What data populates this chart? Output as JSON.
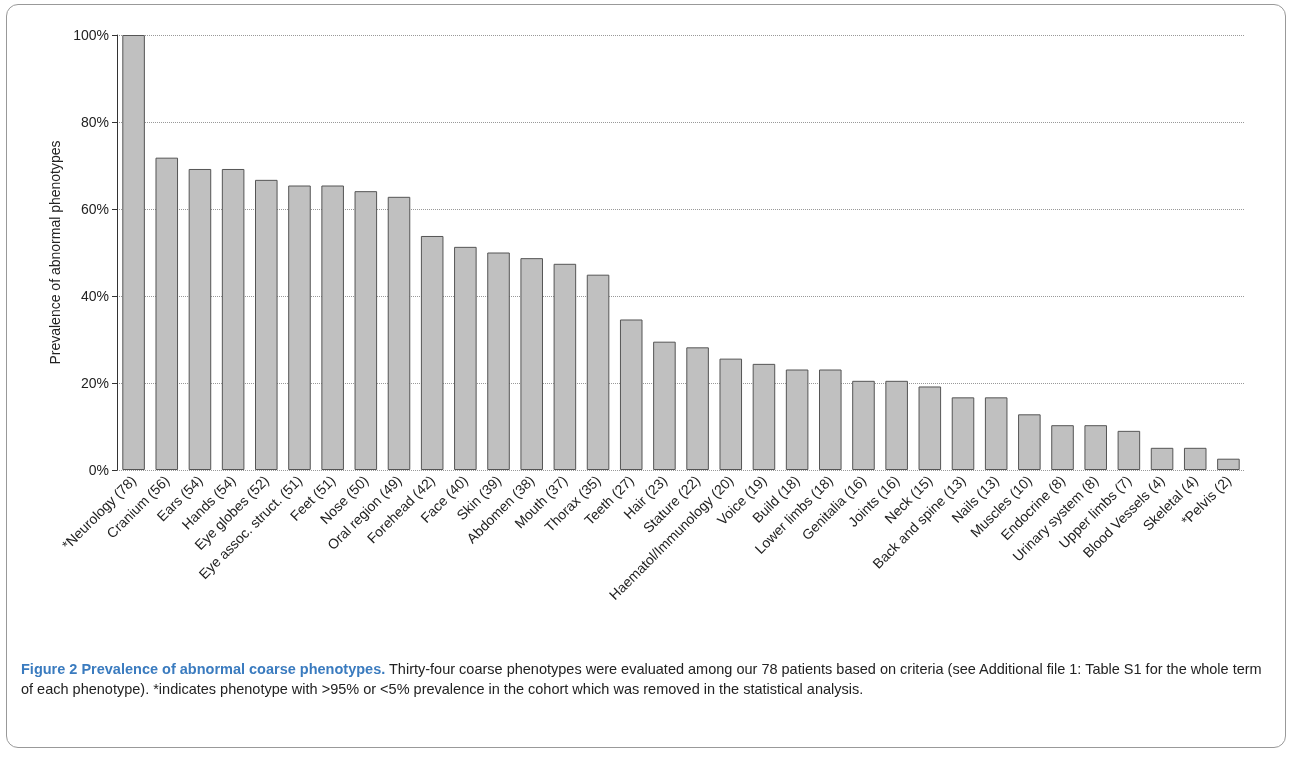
{
  "chart_data": {
    "type": "bar",
    "ylabel": "Prevalence of abnormal phenotypes",
    "categories": [
      "*Neurology (78)",
      "Cranium (56)",
      "Ears (54)",
      "Hands (54)",
      "Eye globes (52)",
      "Eye assoc. struct. (51)",
      "Feet (51)",
      "Nose (50)",
      "Oral region (49)",
      "Forehead (42)",
      "Face (40)",
      "Skin (39)",
      "Abdomen (38)",
      "Mouth (37)",
      "Thorax (35)",
      "Teeth (27)",
      "Hair (23)",
      "Stature (22)",
      "Haematol/Immunology (20)",
      "Voice (19)",
      "Build (18)",
      "Lower limbs (18)",
      "Genitalia (16)",
      "Joints (16)",
      "Neck (15)",
      "Back and spine (13)",
      "Nails (13)",
      "Muscles (10)",
      "Endocrine (8)",
      "Urinary system (8)",
      "Upper limbs (7)",
      "Blood Vessels (4)",
      "Skeletal (4)",
      "*Pelvis (2)"
    ],
    "values": [
      100,
      71.8,
      69.2,
      69.2,
      66.7,
      65.4,
      65.4,
      64.1,
      62.8,
      53.8,
      51.3,
      50,
      48.7,
      47.4,
      44.9,
      34.6,
      29.5,
      28.2,
      25.6,
      24.4,
      23.1,
      23.1,
      20.5,
      20.5,
      19.2,
      16.7,
      16.7,
      12.8,
      10.3,
      10.3,
      9,
      5.1,
      5.1,
      2.6
    ],
    "color": "#c0c0c0",
    "ylim": [
      0,
      100
    ],
    "yticks": [
      {
        "value": 0,
        "label": "0%"
      },
      {
        "value": 20,
        "label": "20%"
      },
      {
        "value": 40,
        "label": "40%"
      },
      {
        "value": 60,
        "label": "60%"
      },
      {
        "value": 80,
        "label": "80%"
      },
      {
        "value": 100,
        "label": "100%"
      }
    ],
    "grid": "y",
    "annotations": [
      "Figure 2 Prevalence of abnormal coarse phenotypes.",
      "Thirty-four coarse phenotypes were evaluated among our 78 patients based on criteria (see Additional file 1: Table S1 for the whole term of each phenotype). *indicates phenotype with >95% or <5% prevalence in the cohort which was removed in the statistical analysis."
    ]
  }
}
